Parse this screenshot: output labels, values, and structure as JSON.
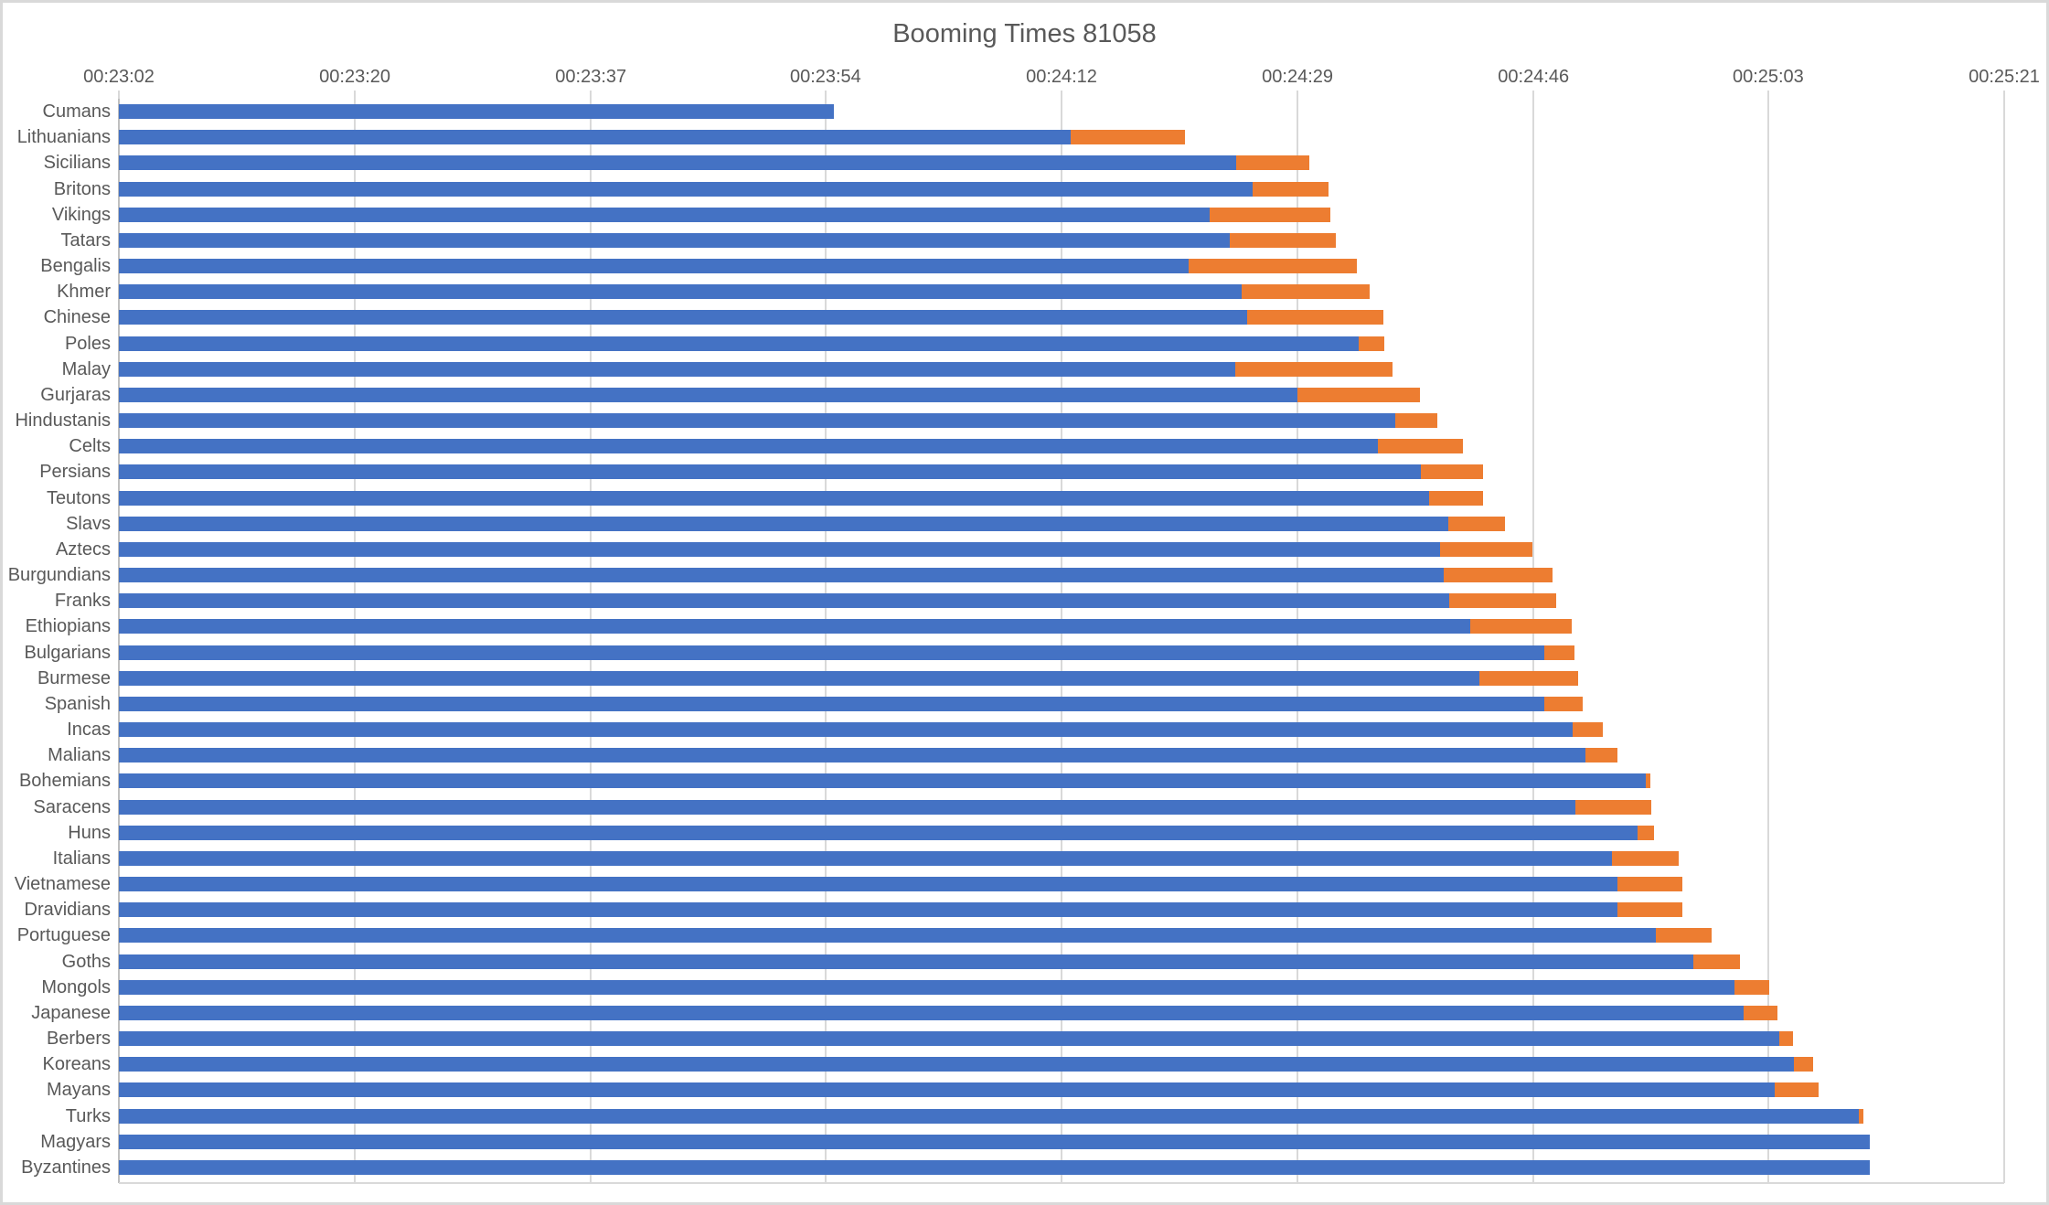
{
  "chart_data": {
    "type": "bar",
    "orientation": "horizontal",
    "stacked": true,
    "title": "Booming Times 81058",
    "xlabel": "",
    "ylabel": "",
    "legend": "none",
    "grid": "vertical",
    "value_axis_position": "top",
    "x_min_s": 1382,
    "x_max_s": 1521,
    "x_ticks": [
      {
        "label": "00:23:02",
        "s": 1382
      },
      {
        "label": "00:23:20",
        "s": 1399.4
      },
      {
        "label": "00:23:37",
        "s": 1416.8
      },
      {
        "label": "00:23:54",
        "s": 1434.1
      },
      {
        "label": "00:24:12",
        "s": 1451.5
      },
      {
        "label": "00:24:29",
        "s": 1468.9
      },
      {
        "label": "00:24:46",
        "s": 1486.3
      },
      {
        "label": "00:25:03",
        "s": 1503.6
      },
      {
        "label": "00:25:21",
        "s": 1521
      }
    ],
    "series_colors": {
      "blue": "#4472C4",
      "orange": "#ED7D31"
    },
    "civs": [
      {
        "name": "Cumans",
        "blue_s": 1434.7,
        "total_s": 1434.7,
        "blue": "00:23:55",
        "total": "00:23:55"
      },
      {
        "name": "Lithuanians",
        "blue_s": 1452.2,
        "total_s": 1460.6,
        "blue": "00:24:12",
        "total": "00:24:21"
      },
      {
        "name": "Sicilians",
        "blue_s": 1464.4,
        "total_s": 1469.8,
        "blue": "00:24:24",
        "total": "00:24:30"
      },
      {
        "name": "Britons",
        "blue_s": 1465.6,
        "total_s": 1471.2,
        "blue": "00:24:26",
        "total": "00:24:31"
      },
      {
        "name": "Vikings",
        "blue_s": 1462.4,
        "total_s": 1471.3,
        "blue": "00:24:22",
        "total": "00:24:31"
      },
      {
        "name": "Tatars",
        "blue_s": 1463.9,
        "total_s": 1471.7,
        "blue": "00:24:24",
        "total": "00:24:32"
      },
      {
        "name": "Bengalis",
        "blue_s": 1460.9,
        "total_s": 1473.3,
        "blue": "00:24:21",
        "total": "00:24:33"
      },
      {
        "name": "Khmer",
        "blue_s": 1464.8,
        "total_s": 1474.2,
        "blue": "00:24:25",
        "total": "00:24:34"
      },
      {
        "name": "Chinese",
        "blue_s": 1465.2,
        "total_s": 1475.2,
        "blue": "00:24:25",
        "total": "00:24:35"
      },
      {
        "name": "Poles",
        "blue_s": 1473.4,
        "total_s": 1475.3,
        "blue": "00:24:33",
        "total": "00:24:35"
      },
      {
        "name": "Malay",
        "blue_s": 1464.3,
        "total_s": 1475.9,
        "blue": "00:24:24",
        "total": "00:24:36"
      },
      {
        "name": "Gurjaras",
        "blue_s": 1468.9,
        "total_s": 1477.9,
        "blue": "00:24:29",
        "total": "00:24:38"
      },
      {
        "name": "Hindustanis",
        "blue_s": 1476.1,
        "total_s": 1479.2,
        "blue": "00:24:36",
        "total": "00:24:39"
      },
      {
        "name": "Celts",
        "blue_s": 1474.8,
        "total_s": 1481.1,
        "blue": "00:24:35",
        "total": "00:24:41"
      },
      {
        "name": "Persians",
        "blue_s": 1478.0,
        "total_s": 1482.6,
        "blue": "00:24:38",
        "total": "00:24:43"
      },
      {
        "name": "Teutons",
        "blue_s": 1478.6,
        "total_s": 1482.6,
        "blue": "00:24:39",
        "total": "00:24:43"
      },
      {
        "name": "Slavs",
        "blue_s": 1480.0,
        "total_s": 1484.2,
        "blue": "00:24:40",
        "total": "00:24:44"
      },
      {
        "name": "Aztecs",
        "blue_s": 1479.4,
        "total_s": 1486.2,
        "blue": "00:24:39",
        "total": "00:24:46"
      },
      {
        "name": "Burgundians",
        "blue_s": 1479.7,
        "total_s": 1487.7,
        "blue": "00:24:40",
        "total": "00:24:48"
      },
      {
        "name": "Franks",
        "blue_s": 1480.1,
        "total_s": 1488.0,
        "blue": "00:24:40",
        "total": "00:24:48"
      },
      {
        "name": "Ethiopians",
        "blue_s": 1481.6,
        "total_s": 1489.1,
        "blue": "00:24:42",
        "total": "00:24:49"
      },
      {
        "name": "Bulgarians",
        "blue_s": 1487.1,
        "total_s": 1489.3,
        "blue": "00:24:47",
        "total": "00:24:49"
      },
      {
        "name": "Burmese",
        "blue_s": 1482.3,
        "total_s": 1489.6,
        "blue": "00:24:42",
        "total": "00:24:50"
      },
      {
        "name": "Spanish",
        "blue_s": 1487.1,
        "total_s": 1489.9,
        "blue": "00:24:47",
        "total": "00:24:50"
      },
      {
        "name": "Incas",
        "blue_s": 1489.2,
        "total_s": 1491.4,
        "blue": "00:24:49",
        "total": "00:24:51"
      },
      {
        "name": "Malians",
        "blue_s": 1490.1,
        "total_s": 1492.5,
        "blue": "00:24:50",
        "total": "00:24:53"
      },
      {
        "name": "Bohemians",
        "blue_s": 1494.6,
        "total_s": 1494.9,
        "blue": "00:24:55",
        "total": "00:24:55"
      },
      {
        "name": "Saracens",
        "blue_s": 1489.4,
        "total_s": 1495.0,
        "blue": "00:24:49",
        "total": "00:24:55"
      },
      {
        "name": "Huns",
        "blue_s": 1494.0,
        "total_s": 1495.2,
        "blue": "00:24:54",
        "total": "00:24:55"
      },
      {
        "name": "Italians",
        "blue_s": 1492.1,
        "total_s": 1497.0,
        "blue": "00:24:52",
        "total": "00:24:57"
      },
      {
        "name": "Vietnamese",
        "blue_s": 1492.5,
        "total_s": 1497.3,
        "blue": "00:24:53",
        "total": "00:24:57"
      },
      {
        "name": "Dravidians",
        "blue_s": 1492.5,
        "total_s": 1497.3,
        "blue": "00:24:53",
        "total": "00:24:57"
      },
      {
        "name": "Portuguese",
        "blue_s": 1495.3,
        "total_s": 1499.4,
        "blue": "00:24:55",
        "total": "00:24:59"
      },
      {
        "name": "Goths",
        "blue_s": 1498.1,
        "total_s": 1501.5,
        "blue": "00:24:58",
        "total": "00:25:02"
      },
      {
        "name": "Mongols",
        "blue_s": 1501.1,
        "total_s": 1503.7,
        "blue": "00:25:01",
        "total": "00:25:04"
      },
      {
        "name": "Japanese",
        "blue_s": 1501.8,
        "total_s": 1504.3,
        "blue": "00:25:02",
        "total": "00:25:04"
      },
      {
        "name": "Berbers",
        "blue_s": 1504.4,
        "total_s": 1505.4,
        "blue": "00:25:04",
        "total": "00:25:05"
      },
      {
        "name": "Koreans",
        "blue_s": 1505.5,
        "total_s": 1506.9,
        "blue": "00:25:06",
        "total": "00:25:07"
      },
      {
        "name": "Mayans",
        "blue_s": 1504.1,
        "total_s": 1507.3,
        "blue": "00:25:04",
        "total": "00:25:07"
      },
      {
        "name": "Turks",
        "blue_s": 1510.3,
        "total_s": 1510.6,
        "blue": "00:25:10",
        "total": "00:25:11"
      },
      {
        "name": "Magyars",
        "blue_s": 1511.1,
        "total_s": 1511.1,
        "blue": "00:25:11",
        "total": "00:25:11"
      },
      {
        "name": "Byzantines",
        "blue_s": 1511.1,
        "total_s": 1511.1,
        "blue": "00:25:11",
        "total": "00:25:11"
      }
    ],
    "colors": {
      "blue": "#4472C4",
      "orange": "#ED7D31",
      "gridline": "#D9D9D9",
      "axis_line": "#BFBFBF",
      "text": "#595959",
      "background": "#FFFFFF",
      "border": "#D9D9D9"
    }
  }
}
